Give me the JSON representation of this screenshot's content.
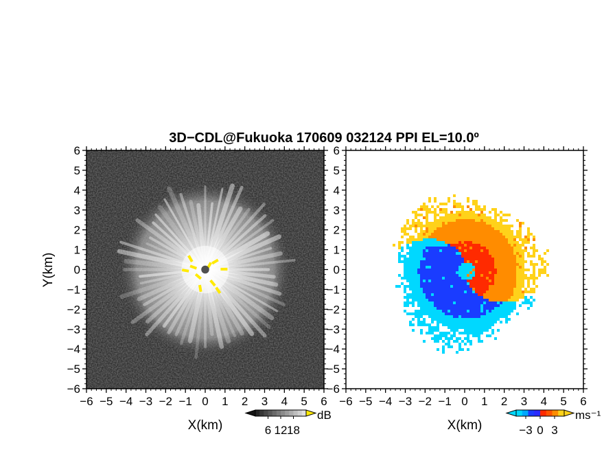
{
  "chart_data": [
    {
      "type": "heatmap",
      "title": "3D−CDL@Fukuoka 170609 032124 PPI EL=10.0º",
      "xlabel": "X(km)",
      "ylabel": "Y(km)",
      "xlim": [
        -6,
        6
      ],
      "ylim": [
        -6,
        6
      ],
      "xticks": [
        "−6",
        "−5",
        "−4",
        "−3",
        "−2",
        "−1",
        "0",
        "1",
        "2",
        "3",
        "4",
        "5",
        "6"
      ],
      "yticks": [
        "6",
        "5",
        "4",
        "3",
        "2",
        "1",
        "0",
        "−1",
        "−2",
        "−3",
        "−4",
        "−5",
        "−6"
      ],
      "field": "SNR",
      "colormap": "grayscale",
      "colorbar": {
        "unit": "dB",
        "ticks": [
          "6",
          "12",
          "18"
        ],
        "range": [
          0,
          24
        ]
      },
      "echo_radius_km": 4.0,
      "blanked_center_radius_km": 0.2,
      "colors": {
        "low": "#303030",
        "high": "#f4f4f4",
        "highlight": "#ffea00"
      }
    },
    {
      "type": "heatmap",
      "xlabel": "X(km)",
      "xlim": [
        -6,
        6
      ],
      "ylim": [
        -6,
        6
      ],
      "xticks": [
        "−6",
        "−5",
        "−4",
        "−3",
        "−2",
        "−1",
        "0",
        "1",
        "2",
        "3",
        "4",
        "5",
        "6"
      ],
      "yticks": [
        "6",
        "5",
        "4",
        "3",
        "2",
        "1",
        "0",
        "−1",
        "−2",
        "−3",
        "−4",
        "−5",
        "−6"
      ],
      "field": "Doppler velocity",
      "colormap": "cyan-blue-red-orange-yellow",
      "colorbar": {
        "unit": "ms⁻¹",
        "ticks": [
          "−3",
          "0",
          "3"
        ],
        "range": [
          -5,
          5
        ]
      },
      "echo_radius_km": 4.2,
      "vortex_center_km": [
        0.0,
        0.0
      ],
      "colors": {
        "cyan": "#00d8ff",
        "blue": "#1a3cff",
        "red": "#ff2a00",
        "orange": "#ff8c00",
        "yellow": "#ffd21a"
      }
    }
  ]
}
